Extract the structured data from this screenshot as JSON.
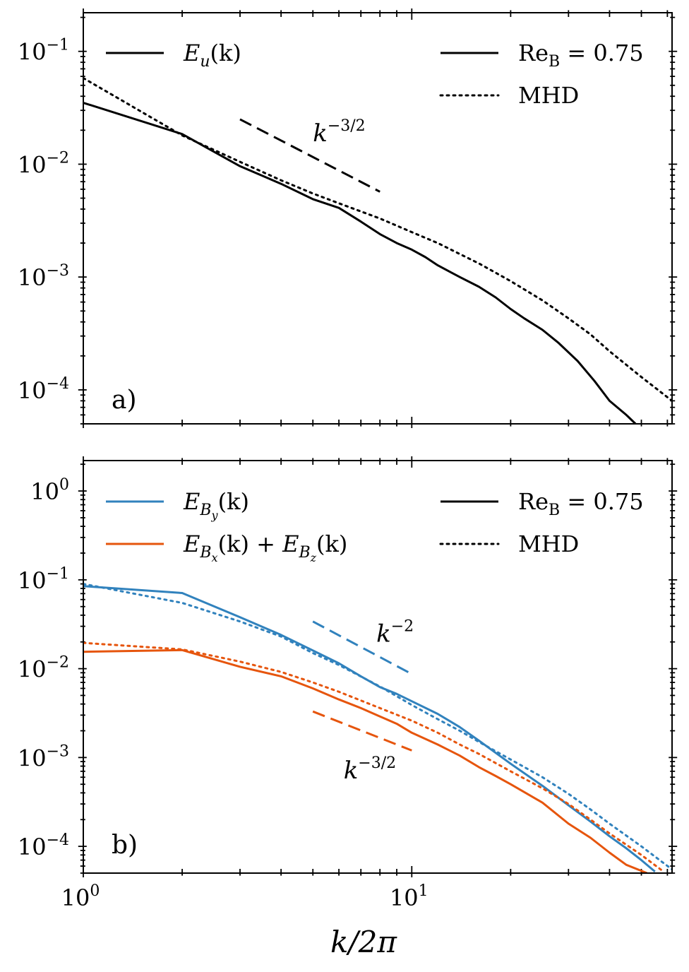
{
  "colors": {
    "black": "#000000",
    "blue": "#3182bd",
    "orange": "#e6550d"
  },
  "chart_data": [
    {
      "type": "line",
      "panel_label": "a)",
      "xscale": "log",
      "yscale": "log",
      "xlim": [
        1,
        62
      ],
      "ylim": [
        5e-05,
        0.22
      ],
      "x_ticks": [
        1,
        10
      ],
      "y_ticks": [
        0.0001,
        0.001,
        0.01,
        0.1
      ],
      "y_tick_labels": [
        {
          "mant": "10",
          "exp": "−4"
        },
        {
          "mant": "10",
          "exp": "−3"
        },
        {
          "mant": "10",
          "exp": "−2"
        },
        {
          "mant": "10",
          "exp": "−1"
        }
      ],
      "series": [
        {
          "name": "E_u(k) Re_B = 0.75",
          "color": "#000000",
          "style": "solid",
          "x": [
            1,
            2,
            3,
            4,
            5,
            6,
            7,
            8,
            9,
            10,
            11,
            12,
            14,
            16,
            18,
            20,
            22,
            25,
            28,
            32,
            36,
            40,
            45,
            48
          ],
          "y": [
            0.035,
            0.0185,
            0.0096,
            0.0067,
            0.0049,
            0.0041,
            0.0031,
            0.0024,
            0.002,
            0.00175,
            0.0015,
            0.00127,
            0.001,
            0.00082,
            0.00066,
            0.00052,
            0.00043,
            0.00034,
            0.00026,
            0.00018,
            0.00012,
            8e-05,
            6e-05,
            5e-05
          ]
        },
        {
          "name": "E_u(k) MHD",
          "color": "#000000",
          "style": "dotted",
          "x": [
            1,
            2,
            3,
            4,
            5,
            6,
            8,
            10,
            12,
            14,
            16,
            20,
            25,
            30,
            35,
            40,
            50,
            62
          ],
          "y": [
            0.058,
            0.018,
            0.0105,
            0.0072,
            0.0055,
            0.0045,
            0.0033,
            0.0025,
            0.002,
            0.0016,
            0.00132,
            0.00092,
            0.00062,
            0.00043,
            0.00031,
            0.00022,
            0.00013,
            8e-05
          ]
        },
        {
          "name": "k^{-3/2} guide",
          "color": "#000000",
          "style": "dashed",
          "x": [
            3,
            8
          ],
          "y": [
            0.025,
            0.0057
          ]
        }
      ],
      "annotations": [
        {
          "text": "k",
          "sup": "−3/2",
          "x": 5,
          "y": 0.016,
          "color": "#000000"
        }
      ],
      "legend_left": [
        {
          "label": "E",
          "sub": "u",
          "tail": "(k)",
          "color": "#000000",
          "style": "solid"
        }
      ],
      "legend_right": [
        {
          "label": "Re",
          "sub": "B",
          "tail": " = 0.75",
          "color": "#000000",
          "style": "solid"
        },
        {
          "label": "MHD",
          "sub": "",
          "tail": "",
          "color": "#000000",
          "style": "dotted"
        }
      ]
    },
    {
      "type": "line",
      "panel_label": "b)",
      "xscale": "log",
      "yscale": "log",
      "xlim": [
        1,
        62
      ],
      "ylim": [
        5e-05,
        2.2
      ],
      "x_ticks": [
        1,
        10
      ],
      "x_tick_labels": [
        {
          "mant": "10",
          "exp": "0"
        },
        {
          "mant": "10",
          "exp": "1"
        }
      ],
      "y_ticks": [
        0.0001,
        0.001,
        0.01,
        0.1,
        1
      ],
      "y_tick_labels": [
        {
          "mant": "10",
          "exp": "−4"
        },
        {
          "mant": "10",
          "exp": "−3"
        },
        {
          "mant": "10",
          "exp": "−2"
        },
        {
          "mant": "10",
          "exp": "−1"
        },
        {
          "mant": "10",
          "exp": "0"
        }
      ],
      "xlabel": "k/2π",
      "series": [
        {
          "name": "E_By(k) Re_B = 0.75",
          "color": "#3182bd",
          "style": "solid",
          "x": [
            1,
            2,
            3,
            4,
            5,
            6,
            7,
            8,
            9,
            10,
            12,
            14,
            16,
            20,
            25,
            30,
            35,
            40,
            45,
            50,
            55
          ],
          "y": [
            0.085,
            0.071,
            0.038,
            0.024,
            0.016,
            0.0115,
            0.0082,
            0.0062,
            0.0052,
            0.0043,
            0.0031,
            0.0022,
            0.00155,
            0.00085,
            0.00048,
            0.00029,
            0.00019,
            0.00013,
            9.5e-05,
            7e-05,
            5.2e-05
          ]
        },
        {
          "name": "E_By(k) MHD",
          "color": "#3182bd",
          "style": "dotted",
          "x": [
            1,
            2,
            3,
            4,
            5,
            6,
            8,
            10,
            12,
            14,
            16,
            20,
            25,
            30,
            35,
            40,
            50,
            62
          ],
          "y": [
            0.09,
            0.055,
            0.034,
            0.023,
            0.015,
            0.011,
            0.0063,
            0.0039,
            0.0027,
            0.002,
            0.0015,
            0.00095,
            0.0006,
            0.00039,
            0.00026,
            0.00018,
            0.0001,
            5.5e-05
          ]
        },
        {
          "name": "E_Bx(k)+E_Bz(k) Re_B = 0.75",
          "color": "#e6550d",
          "style": "solid",
          "x": [
            1,
            2,
            3,
            4,
            5,
            6,
            7,
            8,
            9,
            10,
            12,
            14,
            16,
            18,
            20,
            25,
            30,
            35,
            40,
            45,
            52
          ],
          "y": [
            0.0155,
            0.0162,
            0.0105,
            0.0082,
            0.006,
            0.0045,
            0.0036,
            0.0029,
            0.0024,
            0.0019,
            0.0014,
            0.00105,
            0.00078,
            0.00062,
            0.0005,
            0.00031,
            0.00018,
            0.000125,
            8.5e-05,
            6.2e-05,
            5e-05
          ]
        },
        {
          "name": "E_Bx(k)+E_Bz(k) MHD",
          "color": "#e6550d",
          "style": "dotted",
          "x": [
            1,
            2,
            3,
            4,
            5,
            6,
            8,
            10,
            12,
            14,
            16,
            20,
            25,
            30,
            35,
            40,
            50,
            58
          ],
          "y": [
            0.0195,
            0.0165,
            0.012,
            0.0092,
            0.007,
            0.0055,
            0.0036,
            0.0026,
            0.0019,
            0.0014,
            0.0011,
            0.0007,
            0.00045,
            0.0003,
            0.0002,
            0.00014,
            8e-05,
            5.3e-05
          ]
        },
        {
          "name": "k^{-2} guide",
          "color": "#3182bd",
          "style": "dashed",
          "x": [
            5,
            10
          ],
          "y": [
            0.034,
            0.0087
          ]
        },
        {
          "name": "k^{-3/2} guide",
          "color": "#e6550d",
          "style": "dashed",
          "x": [
            5,
            10
          ],
          "y": [
            0.0033,
            0.0012
          ]
        }
      ],
      "annotations": [
        {
          "text": "k",
          "sup": "−2",
          "x": 7.8,
          "y": 0.02,
          "color": "#3182bd"
        },
        {
          "text": "k",
          "sup": "−3/2",
          "x": 6.2,
          "y": 0.00058,
          "color": "#e6550d"
        }
      ],
      "legend_left": [
        {
          "label": "E",
          "sub": "B",
          "subsub": "y",
          "tail": "(k)",
          "color": "#3182bd",
          "style": "solid"
        },
        {
          "label": "E",
          "sub": "B",
          "subsub": "x",
          "tail": "(k) + ",
          "label2": "E",
          "sub2": "B",
          "subsub2": "z",
          "tail2": "(k)",
          "color": "#e6550d",
          "style": "solid"
        }
      ],
      "legend_right": [
        {
          "label": "Re",
          "sub": "B",
          "tail": " = 0.75",
          "color": "#000000",
          "style": "solid"
        },
        {
          "label": "MHD",
          "sub": "",
          "tail": "",
          "color": "#000000",
          "style": "dotted"
        }
      ]
    }
  ]
}
